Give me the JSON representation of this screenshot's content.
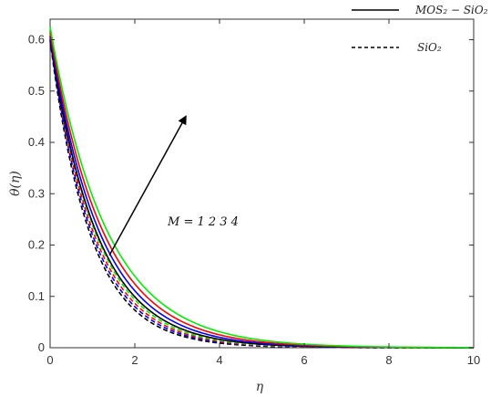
{
  "chart_data": {
    "type": "line",
    "title": "",
    "xlabel": "η",
    "ylabel": "θ(η)",
    "xlim": [
      0,
      10
    ],
    "ylim": [
      0,
      0.64
    ],
    "x_ticks": [
      0,
      2,
      4,
      6,
      8,
      10
    ],
    "y_ticks": [
      0,
      0.1,
      0.2,
      0.3,
      0.4,
      0.5,
      0.6
    ],
    "x_tick_labels": [
      "0",
      "2",
      "4",
      "6",
      "8",
      "10"
    ],
    "y_tick_labels": [
      "0",
      "0.1",
      "0.2",
      "0.3",
      "0.4",
      "0.5",
      "0.6"
    ],
    "grid": false,
    "legend_position": "top-right",
    "legend": [
      {
        "label": "MOS₂ − SiO₂",
        "style": "solid"
      },
      {
        "label": "SiO₂",
        "style": "dashed"
      }
    ],
    "annotation": {
      "text": "M = 1 2 3 4",
      "arrow_from": [
        1.4,
        0.18
      ],
      "arrow_to": [
        3.2,
        0.45
      ]
    },
    "series": [
      {
        "fluid": "MOS2-SiO2",
        "M": 1,
        "style": "solid",
        "color": "#000000",
        "theta0": 0.6,
        "decay": 0.9
      },
      {
        "fluid": "MOS2-SiO2",
        "M": 2,
        "style": "solid",
        "color": "#0000ff",
        "theta0": 0.607,
        "decay": 0.85
      },
      {
        "fluid": "MOS2-SiO2",
        "M": 3,
        "style": "solid",
        "color": "#ff0000",
        "theta0": 0.615,
        "decay": 0.8
      },
      {
        "fluid": "MOS2-SiO2",
        "M": 4,
        "style": "solid",
        "color": "#00ee00",
        "theta0": 0.625,
        "decay": 0.75
      },
      {
        "fluid": "SiO2",
        "M": 1,
        "style": "dashed",
        "color": "#000000",
        "theta0": 0.598,
        "decay": 1.05
      },
      {
        "fluid": "SiO2",
        "M": 2,
        "style": "dashed",
        "color": "#0000ff",
        "theta0": 0.603,
        "decay": 1.01
      },
      {
        "fluid": "SiO2",
        "M": 3,
        "style": "dashed",
        "color": "#ff0000",
        "theta0": 0.608,
        "decay": 0.975
      },
      {
        "fluid": "SiO2",
        "M": 4,
        "style": "dashed",
        "color": "#00ee00",
        "theta0": 0.613,
        "decay": 0.94
      }
    ]
  }
}
